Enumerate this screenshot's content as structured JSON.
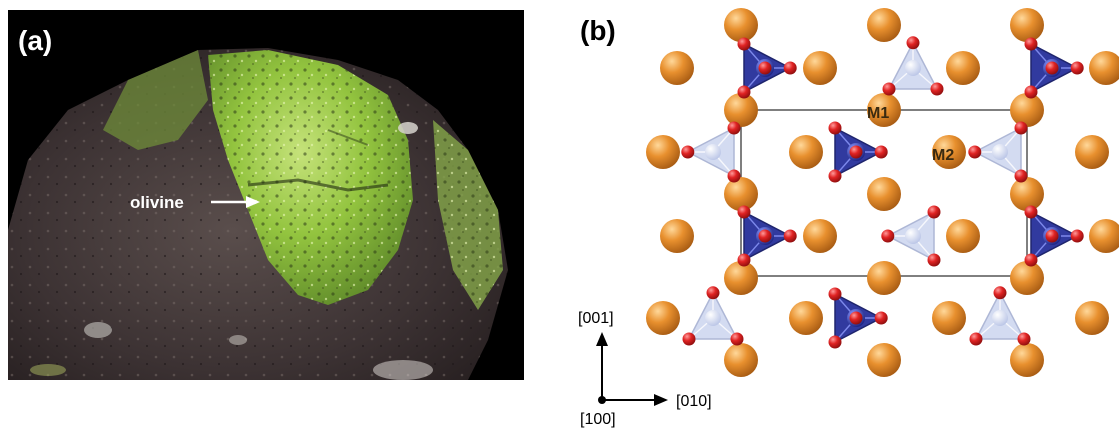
{
  "panel_a": {
    "label": "(a)",
    "annotation": "olivine"
  },
  "panel_b": {
    "label": "(b)",
    "site_labels": [
      "M1",
      "M2"
    ],
    "axes": {
      "vertical": "[001]",
      "horizontal": "[010]",
      "origin": "[100]"
    }
  },
  "colors": {
    "metal_atom": "#e08a2a",
    "oxygen_atom": "#d81e1e",
    "tetrahedron_dark": "#26309a",
    "tetrahedron_light": "#c9d3ee",
    "photo_background": "#000000"
  }
}
